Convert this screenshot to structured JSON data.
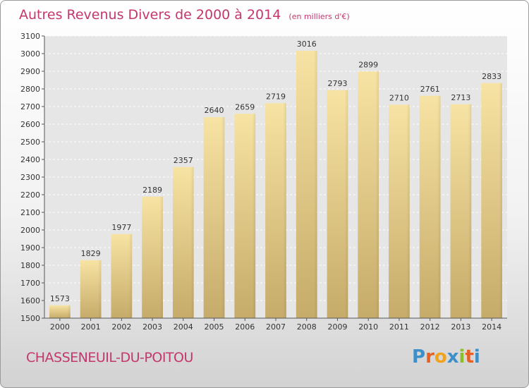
{
  "chart_data": {
    "type": "bar",
    "title": "Autres Revenus Divers de 2000 à 2014",
    "subtitle": "(en milliers d'€)",
    "categories": [
      "2000",
      "2001",
      "2002",
      "2003",
      "2004",
      "2005",
      "2006",
      "2007",
      "2008",
      "2009",
      "2010",
      "2011",
      "2012",
      "2013",
      "2014"
    ],
    "values": [
      1573,
      1829,
      1977,
      2189,
      2357,
      2640,
      2659,
      2719,
      3016,
      2793,
      2899,
      2710,
      2761,
      2713,
      2833
    ],
    "ylim": [
      1500,
      3100
    ],
    "yticks": [
      1500,
      1600,
      1700,
      1800,
      1900,
      2000,
      2100,
      2200,
      2300,
      2400,
      2500,
      2600,
      2700,
      2800,
      2900,
      3000,
      3100
    ],
    "grid": true,
    "bar_color": "#e7cd85"
  },
  "footer": {
    "city": "CHASSENEUIL-DU-POITOU",
    "logo": "Proxiti",
    "logo_colors": [
      "#3d8fc9",
      "#e85f24",
      "#f2a21c",
      "#3d8fc9",
      "#8bbf2a",
      "#e85f24",
      "#3d8fc9"
    ]
  }
}
